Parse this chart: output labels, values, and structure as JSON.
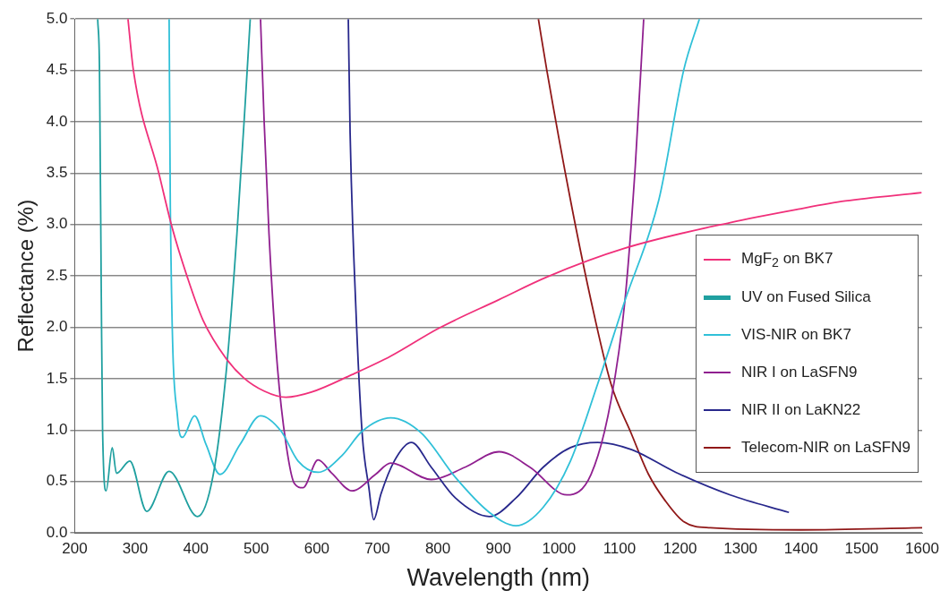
{
  "chart_data": {
    "type": "line",
    "xlabel": "Wavelength (nm)",
    "ylabel": "Reflectance (%)",
    "xlim": [
      200,
      1600
    ],
    "xticks": [
      200,
      300,
      400,
      500,
      600,
      700,
      800,
      900,
      1000,
      1100,
      1200,
      1300,
      1400,
      1500,
      1600
    ],
    "ylim": [
      0,
      5
    ],
    "yticks": [
      {
        "value": 0,
        "label": "0.0"
      },
      {
        "value": 0.5,
        "label": "0.5"
      },
      {
        "value": 1,
        "label": "1.0"
      },
      {
        "value": 1.5,
        "label": "1.5"
      },
      {
        "value": 2,
        "label": "2.0"
      },
      {
        "value": 2.5,
        "label": "2.5"
      },
      {
        "value": 3,
        "label": "3.0"
      },
      {
        "value": 3.5,
        "label": "3.5"
      },
      {
        "value": 4,
        "label": "4.0"
      },
      {
        "value": 4.5,
        "label": "4.5"
      },
      {
        "value": 5,
        "label": "5.0"
      }
    ],
    "grid": "y",
    "legend": "right",
    "marker": "none",
    "line_style": "solid",
    "series": [
      {
        "name": "MgF$_{2}$ on BK7",
        "color": "#f0307a",
        "x": [
          288,
          297,
          339,
          361,
          386,
          412,
          451,
          479,
          513,
          549,
          591,
          658,
          722,
          801,
          901,
          980,
          1109,
          1283,
          1395,
          1473,
          1599
        ],
        "values": [
          5.0,
          4.5,
          3.5,
          2.97,
          2.49,
          2.07,
          1.69,
          1.51,
          1.38,
          1.32,
          1.37,
          1.54,
          1.72,
          1.99,
          2.27,
          2.49,
          2.77,
          3.02,
          3.15,
          3.23,
          3.31
        ]
      },
      {
        "name": "UV on Fused Silica",
        "color": "#20a0a0",
        "x": [
          238,
          241,
          244,
          246,
          252,
          262,
          269,
          291,
          319,
          356,
          403,
          429,
          451,
          468,
          482,
          490
        ],
        "values": [
          5.0,
          4.5,
          2.26,
          1.02,
          0.41,
          0.83,
          0.58,
          0.7,
          0.21,
          0.6,
          0.16,
          0.57,
          1.61,
          2.91,
          4.21,
          5.0
        ]
      },
      {
        "name": "VIS-NIR on BK7",
        "color": "#30c0d8",
        "x": [
          356,
          358,
          370,
          378,
          398,
          417,
          440,
          473,
          507,
          541,
          569,
          602,
          641,
          675,
          722,
          773,
          829,
          885,
          929,
          974,
          1019,
          1064,
          1109,
          1165,
          1206,
          1232
        ],
        "values": [
          5.0,
          3.17,
          1.12,
          0.93,
          1.14,
          0.86,
          0.57,
          0.86,
          1.14,
          0.99,
          0.7,
          0.59,
          0.75,
          0.99,
          1.12,
          0.97,
          0.54,
          0.2,
          0.07,
          0.25,
          0.7,
          1.45,
          2.26,
          3.24,
          4.5,
          5.0
        ]
      },
      {
        "name": "NIR I on LaSFN9",
        "color": "#902090",
        "x": [
          507,
          513,
          521,
          535,
          549,
          563,
          577,
          602,
          625,
          658,
          697,
          722,
          789,
          845,
          901,
          952,
          1013,
          1053,
          1086,
          1109,
          1126,
          1140
        ],
        "values": [
          5.0,
          4.0,
          2.91,
          1.61,
          0.87,
          0.48,
          0.44,
          0.71,
          0.58,
          0.41,
          0.57,
          0.68,
          0.52,
          0.64,
          0.79,
          0.64,
          0.37,
          0.57,
          1.29,
          2.26,
          3.56,
          5.0
        ]
      },
      {
        "name": "NIR II on LaKN22",
        "color": "#28288c",
        "x": [
          652,
          655,
          664,
          675,
          686,
          694,
          706,
          728,
          756,
          789,
          829,
          885,
          929,
          974,
          1019,
          1064,
          1120,
          1193,
          1283,
          1380
        ],
        "values": [
          5.0,
          3.89,
          2.26,
          0.96,
          0.44,
          0.13,
          0.38,
          0.7,
          0.88,
          0.64,
          0.34,
          0.16,
          0.34,
          0.64,
          0.83,
          0.88,
          0.81,
          0.59,
          0.37,
          0.2
        ]
      },
      {
        "name": "Telecom-NIR on LaSFN9",
        "color": "#901818",
        "x": [
          966,
          980,
          1019,
          1053,
          1086,
          1120,
          1148,
          1176,
          1206,
          1250,
          1400,
          1600
        ],
        "values": [
          5.0,
          4.5,
          3.24,
          2.26,
          1.45,
          0.96,
          0.57,
          0.31,
          0.11,
          0.05,
          0.03,
          0.05
        ]
      }
    ]
  }
}
